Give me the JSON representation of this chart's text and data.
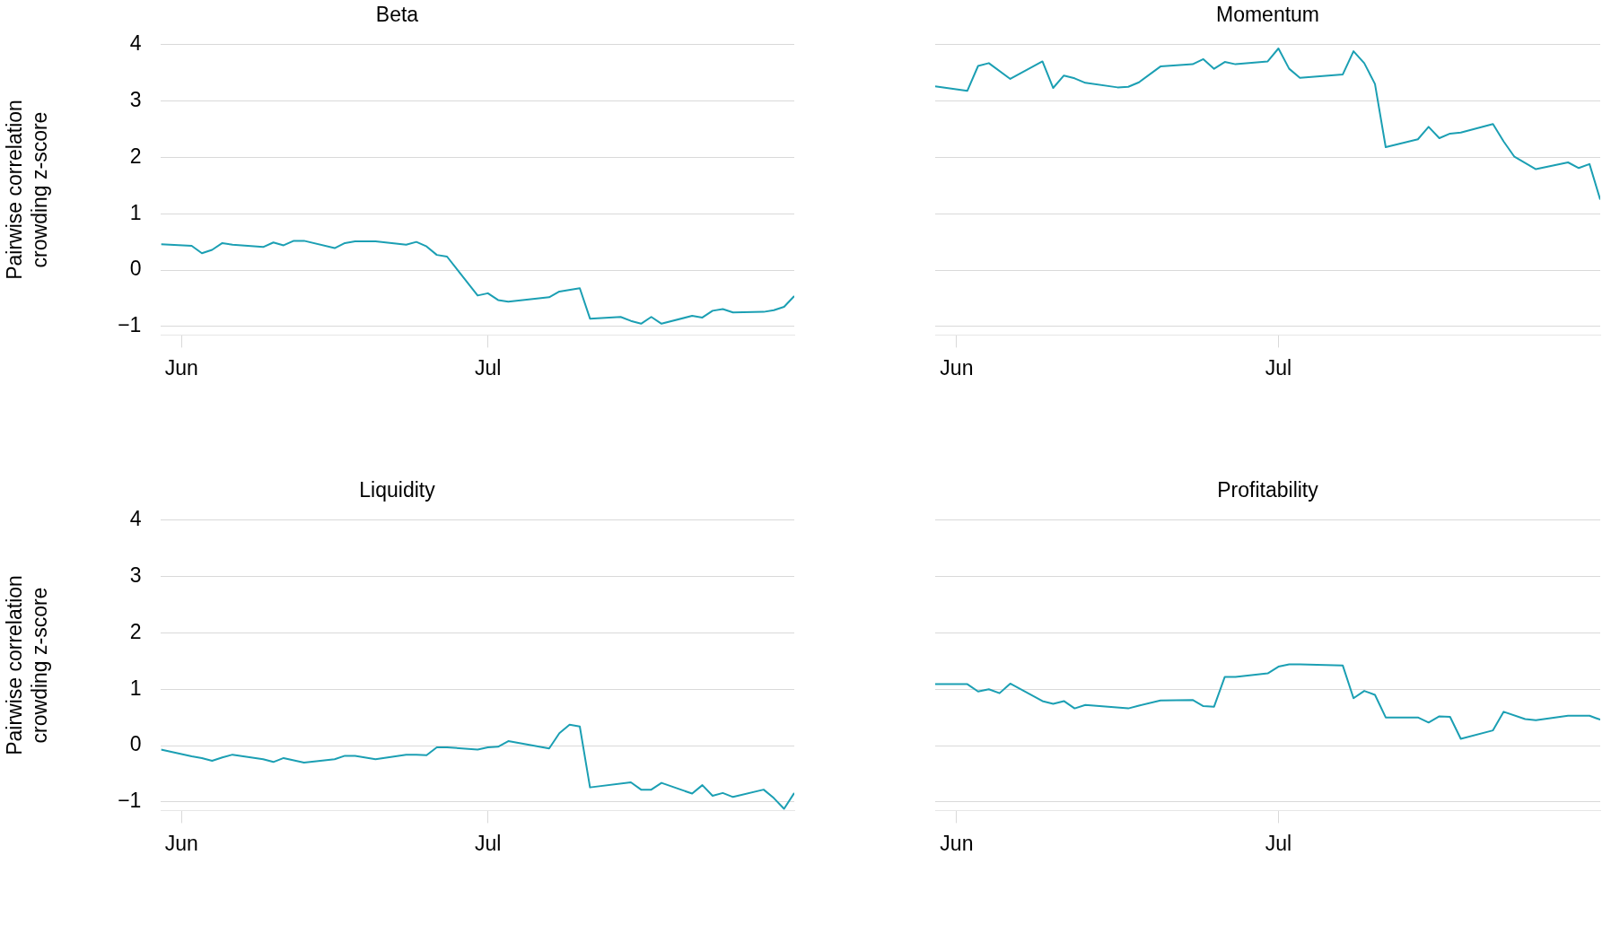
{
  "chart_data": [
    {
      "type": "line",
      "title": "Beta",
      "ylabel": "Pairwise correlation crowding z-score",
      "color": "#1b9fb3",
      "grid": "y",
      "xlim": [
        "--05-30",
        "--07-31"
      ],
      "xticks": [
        {
          "value": "--06-01",
          "label": "Jun"
        },
        {
          "value": "--07-01",
          "label": "Jul"
        }
      ],
      "ylim": [
        -1.15,
        4
      ],
      "yticks": [
        -1,
        0,
        1,
        2,
        3,
        4
      ],
      "x": [
        "--05-30",
        "--06-02",
        "--06-03",
        "--06-04",
        "--06-05",
        "--06-06",
        "--06-09",
        "--06-10",
        "--06-11",
        "--06-12",
        "--06-13",
        "--06-16",
        "--06-17",
        "--06-18",
        "--06-20",
        "--06-23",
        "--06-24",
        "--06-25",
        "--06-26",
        "--06-27",
        "--06-30",
        "--07-01",
        "--07-02",
        "--07-03",
        "--07-07",
        "--07-08",
        "--07-10",
        "--07-11",
        "--07-14",
        "--07-15",
        "--07-16",
        "--07-17",
        "--07-18",
        "--07-21",
        "--07-22",
        "--07-23",
        "--07-24",
        "--07-25",
        "--07-28",
        "--07-29",
        "--07-30",
        "--07-31"
      ],
      "values": [
        0.46,
        0.43,
        0.3,
        0.36,
        0.48,
        0.45,
        0.41,
        0.49,
        0.44,
        0.52,
        0.52,
        0.39,
        0.48,
        0.51,
        0.51,
        0.45,
        0.5,
        0.42,
        0.27,
        0.24,
        -0.45,
        -0.41,
        -0.53,
        -0.56,
        -0.48,
        -0.38,
        -0.32,
        -0.86,
        -0.83,
        -0.9,
        -0.95,
        -0.83,
        -0.95,
        -0.81,
        -0.84,
        -0.72,
        -0.69,
        -0.75,
        -0.74,
        -0.71,
        -0.65,
        -0.46
      ]
    },
    {
      "type": "line",
      "title": "Momentum",
      "color": "#1b9fb3",
      "grid": "y",
      "tick_labels": "x",
      "xlim": [
        "--05-30",
        "--07-31"
      ],
      "xticks": [
        {
          "value": "--06-01",
          "label": "Jun"
        },
        {
          "value": "--07-01",
          "label": "Jul"
        }
      ],
      "ylim": [
        -1.15,
        4
      ],
      "yticks": [
        -1,
        0,
        1,
        2,
        3,
        4
      ],
      "x": [
        "--05-30",
        "--06-02",
        "--06-03",
        "--06-04",
        "--06-06",
        "--06-09",
        "--06-10",
        "--06-11",
        "--06-12",
        "--06-13",
        "--06-16",
        "--06-17",
        "--06-18",
        "--06-20",
        "--06-23",
        "--06-24",
        "--06-25",
        "--06-26",
        "--06-27",
        "--06-30",
        "--07-01",
        "--07-02",
        "--07-03",
        "--07-07",
        "--07-08",
        "--07-09",
        "--07-10",
        "--07-11",
        "--07-14",
        "--07-15",
        "--07-16",
        "--07-17",
        "--07-18",
        "--07-21",
        "--07-22",
        "--07-23",
        "--07-25",
        "--07-28",
        "--07-29",
        "--07-30",
        "--07-31"
      ],
      "values": [
        3.26,
        3.18,
        3.62,
        3.67,
        3.39,
        3.7,
        3.23,
        3.45,
        3.4,
        3.32,
        3.24,
        3.25,
        3.33,
        3.61,
        3.65,
        3.74,
        3.57,
        3.69,
        3.65,
        3.7,
        3.93,
        3.57,
        3.41,
        3.47,
        3.88,
        3.67,
        3.3,
        2.18,
        2.32,
        2.54,
        2.34,
        2.42,
        2.44,
        2.59,
        2.28,
        2.01,
        1.79,
        1.91,
        1.81,
        1.88,
        1.25
      ]
    },
    {
      "type": "line",
      "title": "Liquidity",
      "ylabel": "Pairwise correlation crowding z-score",
      "color": "#1b9fb3",
      "grid": "y",
      "xlim": [
        "--05-30",
        "--07-31"
      ],
      "xticks": [
        {
          "value": "--06-01",
          "label": "Jun"
        },
        {
          "value": "--07-01",
          "label": "Jul"
        }
      ],
      "ylim": [
        -1.15,
        4
      ],
      "yticks": [
        -1,
        0,
        1,
        2,
        3,
        4
      ],
      "x": [
        "--05-30",
        "--06-02",
        "--06-03",
        "--06-04",
        "--06-05",
        "--06-06",
        "--06-09",
        "--06-10",
        "--06-11",
        "--06-13",
        "--06-16",
        "--06-17",
        "--06-18",
        "--06-20",
        "--06-23",
        "--06-24",
        "--06-25",
        "--06-26",
        "--06-27",
        "--06-30",
        "--07-01",
        "--07-02",
        "--07-03",
        "--07-07",
        "--07-08",
        "--07-09",
        "--07-10",
        "--07-11",
        "--07-15",
        "--07-16",
        "--07-17",
        "--07-18",
        "--07-21",
        "--07-22",
        "--07-23",
        "--07-24",
        "--07-25",
        "--07-28",
        "--07-29",
        "--07-30",
        "--07-31"
      ],
      "values": [
        -0.07,
        -0.19,
        -0.22,
        -0.27,
        -0.21,
        -0.16,
        -0.24,
        -0.29,
        -0.22,
        -0.3,
        -0.24,
        -0.18,
        -0.18,
        -0.24,
        -0.16,
        -0.16,
        -0.17,
        -0.03,
        -0.03,
        -0.07,
        -0.03,
        -0.02,
        0.08,
        -0.05,
        0.22,
        0.37,
        0.34,
        -0.74,
        -0.65,
        -0.78,
        -0.78,
        -0.66,
        -0.85,
        -0.7,
        -0.89,
        -0.84,
        -0.91,
        -0.78,
        -0.93,
        -1.12,
        -0.84
      ]
    },
    {
      "type": "line",
      "title": "Profitability",
      "color": "#1b9fb3",
      "grid": "y",
      "tick_labels": "x",
      "xlim": [
        "--05-30",
        "--07-31"
      ],
      "xticks": [
        {
          "value": "--06-01",
          "label": "Jun"
        },
        {
          "value": "--07-01",
          "label": "Jul"
        }
      ],
      "ylim": [
        -1.15,
        4
      ],
      "yticks": [
        -1,
        0,
        1,
        2,
        3,
        4
      ],
      "x": [
        "--05-30",
        "--06-02",
        "--06-03",
        "--06-04",
        "--06-05",
        "--06-06",
        "--06-09",
        "--06-10",
        "--06-11",
        "--06-12",
        "--06-13",
        "--06-17",
        "--06-18",
        "--06-20",
        "--06-23",
        "--06-24",
        "--06-25",
        "--06-26",
        "--06-27",
        "--06-30",
        "--07-01",
        "--07-02",
        "--07-03",
        "--07-07",
        "--07-08",
        "--07-09",
        "--07-10",
        "--07-11",
        "--07-14",
        "--07-15",
        "--07-16",
        "--07-17",
        "--07-18",
        "--07-21",
        "--07-22",
        "--07-24",
        "--07-25",
        "--07-28",
        "--07-30",
        "--07-31"
      ],
      "values": [
        1.09,
        1.09,
        0.96,
        1.0,
        0.93,
        1.1,
        0.79,
        0.74,
        0.79,
        0.66,
        0.72,
        0.66,
        0.71,
        0.8,
        0.81,
        0.7,
        0.69,
        1.22,
        1.22,
        1.28,
        1.4,
        1.44,
        1.44,
        1.42,
        0.84,
        0.97,
        0.9,
        0.5,
        0.5,
        0.41,
        0.52,
        0.51,
        0.12,
        0.27,
        0.6,
        0.47,
        0.45,
        0.53,
        0.53,
        0.46
      ]
    }
  ]
}
